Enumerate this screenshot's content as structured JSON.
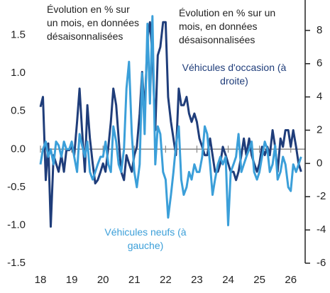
{
  "chart_data": {
    "type": "line",
    "annotations": [
      "Évolution en % sur un mois, en données désaisonnalisées",
      "Évolution en % sur un mois, en données désaisonnalisées"
    ],
    "x": [
      18,
      18.08,
      18.17,
      18.25,
      18.33,
      18.42,
      18.5,
      18.58,
      18.67,
      18.75,
      18.83,
      18.92,
      19,
      19.08,
      19.17,
      19.25,
      19.33,
      19.42,
      19.5,
      19.58,
      19.67,
      19.75,
      19.83,
      19.92,
      20,
      20.08,
      20.17,
      20.25,
      20.33,
      20.42,
      20.5,
      20.58,
      20.67,
      20.75,
      20.83,
      20.92,
      21,
      21.08,
      21.17,
      21.25,
      21.33,
      21.42,
      21.5,
      21.58,
      21.67,
      21.75,
      21.83,
      21.92,
      22,
      22.08,
      22.17,
      22.25,
      22.33,
      22.42,
      22.5,
      22.58,
      22.67,
      22.75,
      22.83,
      22.92,
      23,
      23.08,
      23.17,
      23.25,
      23.33,
      23.42,
      23.5,
      23.58,
      23.67,
      23.75,
      23.83,
      23.92,
      24,
      24.08,
      24.17,
      24.25,
      24.33,
      24.42,
      24.5,
      24.58,
      24.67,
      24.75,
      24.83,
      24.92,
      25,
      25.08,
      25.17,
      25.25,
      25.33,
      25.42,
      25.5,
      25.58,
      25.67,
      25.75,
      25.83,
      25.92,
      26,
      26.08,
      26.17,
      26.25,
      26.33
    ],
    "series": [
      {
        "name": "Véhicules d'occasion (à droite)",
        "color": "#1f3d7a",
        "axis": "y2",
        "values": [
          3.4,
          4.0,
          -1,
          1.2,
          -3.8,
          0.5,
          0,
          -0.5,
          0.5,
          -0.5,
          0.8,
          0.8,
          1,
          0.5,
          2.5,
          4.5,
          2,
          -0.5,
          3.5,
          1.5,
          0,
          -1.2,
          -1,
          -0.5,
          0,
          -0.5,
          1,
          2.5,
          4.5,
          3.5,
          1.5,
          -0.5,
          -1,
          0.5,
          0,
          -0.5,
          0.5,
          1,
          3,
          5.5,
          3,
          7.5,
          8.5,
          6.5,
          2,
          6.5,
          7,
          8.5,
          8.5,
          4,
          2.5,
          1.5,
          0.5,
          4.5,
          3.5,
          3.5,
          4,
          3,
          2.5,
          3,
          2.5,
          1.5,
          1,
          0.5,
          0.5,
          1.5,
          0.5,
          -0.5,
          -0.5,
          0,
          1,
          0.5,
          0,
          -0.5,
          -0.5,
          -1,
          -0.5,
          0.5,
          1.5,
          0.5,
          1.5,
          0.5,
          0,
          -0.5,
          0,
          1,
          0.5,
          1,
          0.5,
          2,
          1,
          -0.5,
          1.5,
          1,
          2,
          2,
          1,
          2,
          1,
          0,
          -0.5
        ]
      },
      {
        "name": "Véhicules neufs (à gauche)",
        "color": "#3b9fd9",
        "values": [
          -0.2,
          0,
          0.1,
          -0.1,
          0,
          -0.2,
          0.1,
          0.05,
          -0.1,
          0.1,
          0,
          0,
          0.1,
          -0.1,
          -0.3,
          0.2,
          0.05,
          -0.1,
          0.1,
          -0.3,
          -0.4,
          -0.3,
          -0.2,
          -0.1,
          -0.1,
          0.1,
          -0.2,
          -0.3,
          0.3,
          0.1,
          -0.2,
          -0.3,
          0,
          0.8,
          1.15,
          0.2,
          -0.3,
          -0.5,
          -0.2,
          1.0,
          0.2,
          1.65,
          0.6,
          1.75,
          -0.2,
          0.3,
          0.2,
          -0.3,
          -0.4,
          -0.9,
          -0.6,
          -0.3,
          0.05,
          0.3,
          -0.4,
          -0.6,
          -0.5,
          -0.3,
          -0.4,
          -0.2,
          -0.3,
          -0.3,
          -0.1,
          0.3,
          0.2,
          -0.2,
          -0.6,
          -0.4,
          -0.2,
          -0.1,
          -0.2,
          -0.1,
          -1.0,
          -0.3,
          -0.2,
          -0.1,
          0.2,
          -0.3,
          -0.2,
          -0.1,
          0,
          0.1,
          -0.3,
          -0.4,
          -0.3,
          -0.1,
          0.1,
          0,
          -0.3,
          -0.2,
          0.05,
          -0.4,
          -0.3,
          -0.1,
          -0.2,
          -0.5,
          -0.55,
          -0.2,
          -0.3,
          -0.2,
          -0.1
        ]
      }
    ],
    "xlim": [
      18,
      26.46
    ],
    "xticks": [
      18,
      19,
      20,
      21,
      22,
      23,
      24,
      25,
      26
    ],
    "ylim": [
      -1.5,
      2.0
    ],
    "yticks": [
      -1.5,
      {
        "value": -1,
        "label": "-1.0"
      },
      -0.5,
      {
        "value": 0,
        "label": "0.0"
      },
      0.5,
      {
        "value": 1,
        "label": "1.0"
      },
      1.5,
      {
        "value": 2,
        "label": "2.0"
      }
    ],
    "y2lim": [
      -6,
      10
    ],
    "y2ticks": [
      -6,
      -4,
      -2,
      0,
      2,
      4,
      6,
      8,
      10
    ]
  }
}
